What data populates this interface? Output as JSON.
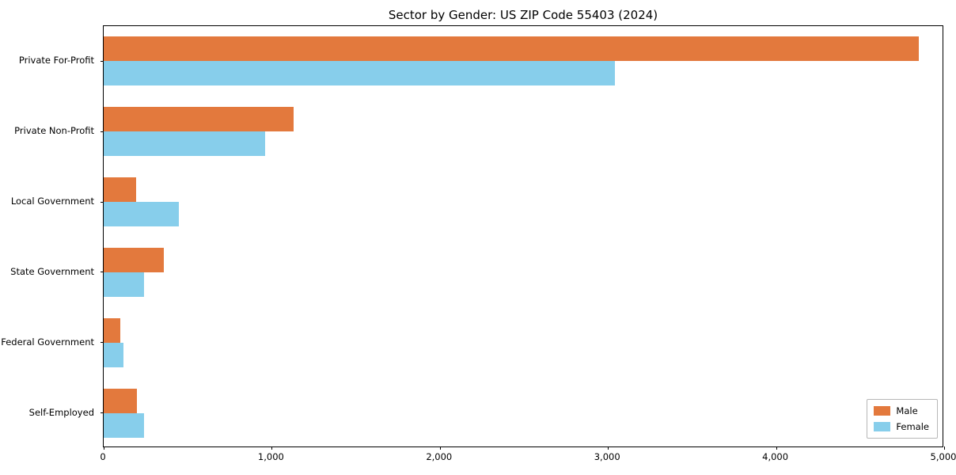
{
  "title": "Sector by Gender: US ZIP Code 55403 (2024)",
  "chart_data": {
    "type": "bar",
    "orientation": "horizontal",
    "title": "Sector by Gender: US ZIP Code 55403 (2024)",
    "categories": [
      "Private For-Profit",
      "Private Non-Profit",
      "Local Government",
      "State Government",
      "Federal Government",
      "Self-Employed"
    ],
    "series": [
      {
        "name": "Male",
        "color": "#e3793d",
        "values": [
          4850,
          1130,
          195,
          360,
          100,
          200
        ]
      },
      {
        "name": "Female",
        "color": "#87ceeb",
        "values": [
          3040,
          960,
          445,
          240,
          120,
          240
        ]
      }
    ],
    "xlim": [
      0,
      5000
    ],
    "xticks": [
      0,
      1000,
      2000,
      3000,
      4000,
      5000
    ],
    "xtick_labels": [
      "0",
      "1,000",
      "2,000",
      "3,000",
      "4,000",
      "5,000"
    ],
    "xlabel": "",
    "ylabel": "",
    "grid": false,
    "legend_position": "lower right"
  },
  "legend": {
    "items": [
      {
        "label": "Male",
        "color": "#e3793d"
      },
      {
        "label": "Female",
        "color": "#87ceeb"
      }
    ]
  }
}
